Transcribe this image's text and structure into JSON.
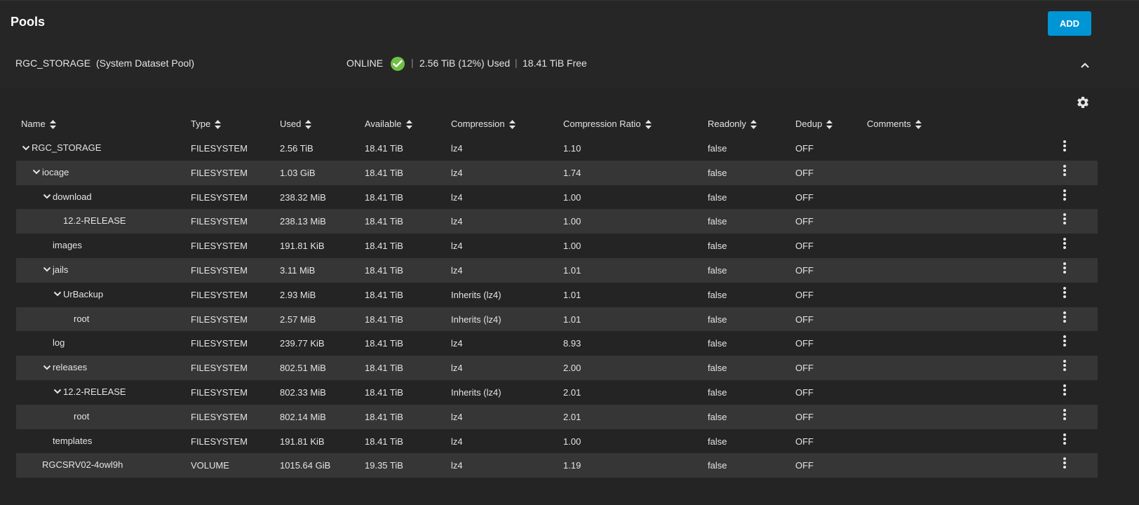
{
  "header": {
    "title": "Pools",
    "add_label": "ADD"
  },
  "pool": {
    "name": "RGC_STORAGE",
    "subtitle": "(System Dataset Pool)",
    "status": "ONLINE",
    "sep": "|",
    "used": "2.56 TiB (12%) Used",
    "free": "18.41 TiB Free",
    "status_color": "#71bf44"
  },
  "columns": [
    "Name",
    "Type",
    "Used",
    "Available",
    "Compression",
    "Compression Ratio",
    "Readonly",
    "Dedup",
    "Comments"
  ],
  "rows": [
    {
      "name": "RGC_STORAGE",
      "depth": 0,
      "expandable": true,
      "type": "FILESYSTEM",
      "used": "2.56 TiB",
      "available": "18.41 TiB",
      "compression": "lz4",
      "ratio": "1.10",
      "readonly": "false",
      "dedup": "OFF",
      "comments": ""
    },
    {
      "name": "iocage",
      "depth": 1,
      "expandable": true,
      "type": "FILESYSTEM",
      "used": "1.03 GiB",
      "available": "18.41 TiB",
      "compression": "lz4",
      "ratio": "1.74",
      "readonly": "false",
      "dedup": "OFF",
      "comments": ""
    },
    {
      "name": "download",
      "depth": 2,
      "expandable": true,
      "type": "FILESYSTEM",
      "used": "238.32 MiB",
      "available": "18.41 TiB",
      "compression": "lz4",
      "ratio": "1.00",
      "readonly": "false",
      "dedup": "OFF",
      "comments": ""
    },
    {
      "name": "12.2-RELEASE",
      "depth": 3,
      "expandable": false,
      "type": "FILESYSTEM",
      "used": "238.13 MiB",
      "available": "18.41 TiB",
      "compression": "lz4",
      "ratio": "1.00",
      "readonly": "false",
      "dedup": "OFF",
      "comments": ""
    },
    {
      "name": "images",
      "depth": 2,
      "expandable": false,
      "type": "FILESYSTEM",
      "used": "191.81 KiB",
      "available": "18.41 TiB",
      "compression": "lz4",
      "ratio": "1.00",
      "readonly": "false",
      "dedup": "OFF",
      "comments": ""
    },
    {
      "name": "jails",
      "depth": 2,
      "expandable": true,
      "type": "FILESYSTEM",
      "used": "3.11 MiB",
      "available": "18.41 TiB",
      "compression": "lz4",
      "ratio": "1.01",
      "readonly": "false",
      "dedup": "OFF",
      "comments": ""
    },
    {
      "name": "UrBackup",
      "depth": 3,
      "expandable": true,
      "type": "FILESYSTEM",
      "used": "2.93 MiB",
      "available": "18.41 TiB",
      "compression": "Inherits (lz4)",
      "ratio": "1.01",
      "readonly": "false",
      "dedup": "OFF",
      "comments": ""
    },
    {
      "name": "root",
      "depth": 4,
      "expandable": false,
      "type": "FILESYSTEM",
      "used": "2.57 MiB",
      "available": "18.41 TiB",
      "compression": "Inherits (lz4)",
      "ratio": "1.01",
      "readonly": "false",
      "dedup": "OFF",
      "comments": ""
    },
    {
      "name": "log",
      "depth": 2,
      "expandable": false,
      "type": "FILESYSTEM",
      "used": "239.77 KiB",
      "available": "18.41 TiB",
      "compression": "lz4",
      "ratio": "8.93",
      "readonly": "false",
      "dedup": "OFF",
      "comments": ""
    },
    {
      "name": "releases",
      "depth": 2,
      "expandable": true,
      "type": "FILESYSTEM",
      "used": "802.51 MiB",
      "available": "18.41 TiB",
      "compression": "lz4",
      "ratio": "2.00",
      "readonly": "false",
      "dedup": "OFF",
      "comments": ""
    },
    {
      "name": "12.2-RELEASE",
      "depth": 3,
      "expandable": true,
      "type": "FILESYSTEM",
      "used": "802.33 MiB",
      "available": "18.41 TiB",
      "compression": "Inherits (lz4)",
      "ratio": "2.01",
      "readonly": "false",
      "dedup": "OFF",
      "comments": ""
    },
    {
      "name": "root",
      "depth": 4,
      "expandable": false,
      "type": "FILESYSTEM",
      "used": "802.14 MiB",
      "available": "18.41 TiB",
      "compression": "lz4",
      "ratio": "2.01",
      "readonly": "false",
      "dedup": "OFF",
      "comments": ""
    },
    {
      "name": "templates",
      "depth": 2,
      "expandable": false,
      "type": "FILESYSTEM",
      "used": "191.81 KiB",
      "available": "18.41 TiB",
      "compression": "lz4",
      "ratio": "1.00",
      "readonly": "false",
      "dedup": "OFF",
      "comments": ""
    },
    {
      "name": "RGCSRV02-4owl9h",
      "depth": 1,
      "expandable": false,
      "type": "VOLUME",
      "used": "1015.64 GiB",
      "available": "19.35 TiB",
      "compression": "lz4",
      "ratio": "1.19",
      "readonly": "false",
      "dedup": "OFF",
      "comments": ""
    }
  ],
  "icons": {
    "status": "check-circle-icon",
    "collapse": "chevron-up-icon",
    "settings": "gear-icon",
    "sort": "sort-icon",
    "expand": "chevron-down-icon",
    "row_menu": "more-vertical-icon"
  },
  "colors": {
    "accent": "#0095d5",
    "online": "#71bf44",
    "alt_row": "#363636"
  }
}
